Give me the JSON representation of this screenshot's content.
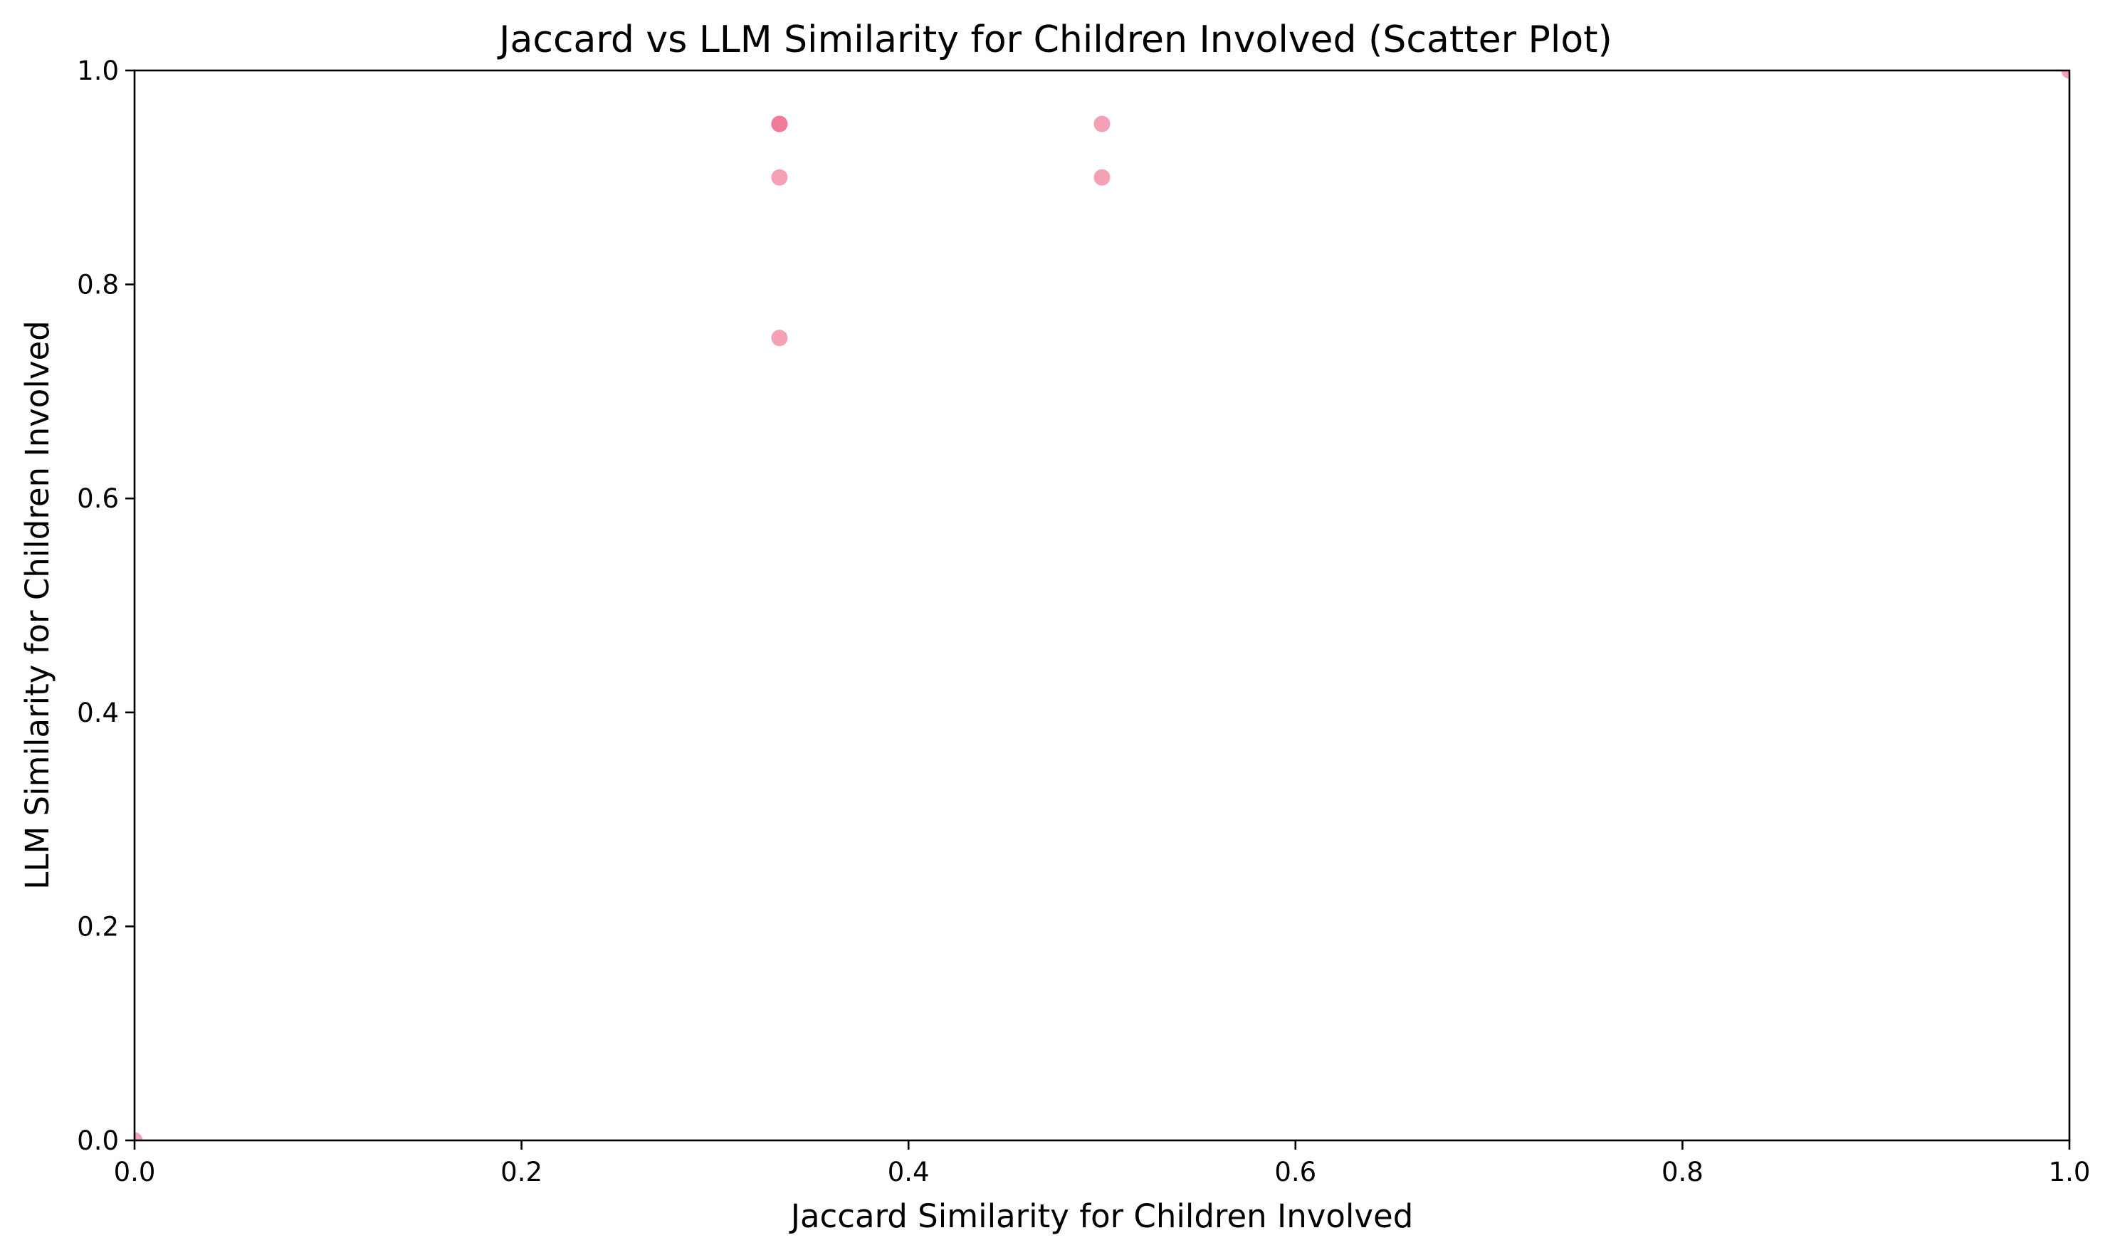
{
  "chart_data": {
    "type": "scatter",
    "title": "Jaccard vs LLM Similarity for Children Involved (Scatter Plot)",
    "xlabel": "Jaccard Similarity for Children Involved",
    "ylabel": "LLM Similarity for Children Involved",
    "xlim": [
      0,
      1
    ],
    "ylim": [
      0,
      1
    ],
    "xticks": [
      "0.0",
      "0.2",
      "0.4",
      "0.6",
      "0.8",
      "1.0"
    ],
    "yticks": [
      "0.0",
      "0.2",
      "0.4",
      "0.6",
      "0.8",
      "1.0"
    ],
    "grid": false,
    "marker_color": "#f07896",
    "marker_alpha": 0.7,
    "series": [
      {
        "points": [
          {
            "x": 0.0,
            "y": 0.0
          },
          {
            "x": 0.3333,
            "y": 0.95
          },
          {
            "x": 0.3333,
            "y": 0.95
          },
          {
            "x": 0.3333,
            "y": 0.95
          },
          {
            "x": 0.3333,
            "y": 0.9
          },
          {
            "x": 0.3333,
            "y": 0.75
          },
          {
            "x": 0.5,
            "y": 0.95
          },
          {
            "x": 0.5,
            "y": 0.9
          },
          {
            "x": 1.0,
            "y": 1.0
          }
        ]
      }
    ]
  }
}
